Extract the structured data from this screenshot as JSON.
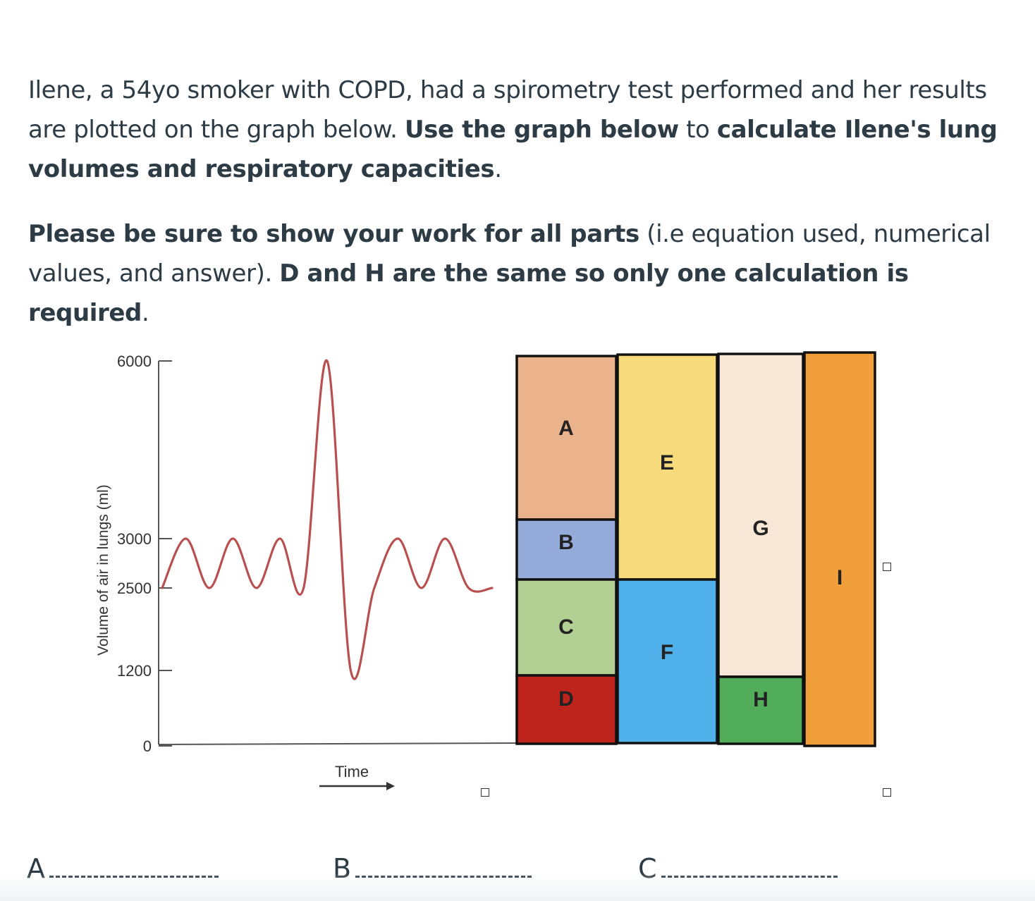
{
  "question": {
    "p1": [
      {
        "text": "Ilene, a 54yo smoker with COPD, had a spirometry test performed and her results are plotted on the graph below. ",
        "bold": false
      },
      {
        "text": "Use the graph below",
        "bold": true
      },
      {
        "text": " to ",
        "bold": false
      },
      {
        "text": "calculate Ilene's lung volumes and respiratory capacities",
        "bold": true
      },
      {
        "text": ".",
        "bold": false
      }
    ],
    "p2": [
      {
        "text": "Please be sure to show your work for all parts",
        "bold": true
      },
      {
        "text": " (i.e equation used, numerical values, and answer). ",
        "bold": false
      },
      {
        "text": "D and H are the same so only one calculation is required",
        "bold": true
      },
      {
        "text": ".",
        "bold": false
      }
    ]
  },
  "chart_data": {
    "type": "line",
    "title": "",
    "xlabel": "Time",
    "ylabel": "Volume of air in lungs (ml)",
    "yticks": [
      6000,
      3000,
      2500,
      1200,
      0
    ],
    "ylim": [
      0,
      6000
    ],
    "x": [
      0,
      0.5,
      1,
      1.5,
      2,
      2.5,
      3,
      3.5,
      4,
      4.5,
      5,
      5.5,
      6,
      6.5,
      7
    ],
    "values": [
      2500,
      3000,
      2500,
      3000,
      2500,
      3000,
      2500,
      6000,
      1200,
      2500,
      3000,
      2500,
      3000,
      2500,
      2500
    ],
    "line_color": "#b8504f",
    "grid": false
  },
  "volume_boxes": [
    {
      "label": "A",
      "color": "#ebb38b"
    },
    {
      "label": "B",
      "color": "#95abd9"
    },
    {
      "label": "C",
      "color": "#b2cf94"
    },
    {
      "label": "D",
      "color": "#bf241c"
    },
    {
      "label": "E",
      "color": "#f7da7c"
    },
    {
      "label": "F",
      "color": "#4fb0ea"
    },
    {
      "label": "G",
      "color": "#f8e6d7"
    },
    {
      "label": "H",
      "color": "#52ad5b"
    },
    {
      "label": "I",
      "color": "#f09f3b"
    }
  ],
  "answers": [
    {
      "label": "A"
    },
    {
      "label": "B"
    },
    {
      "label": "C"
    }
  ]
}
